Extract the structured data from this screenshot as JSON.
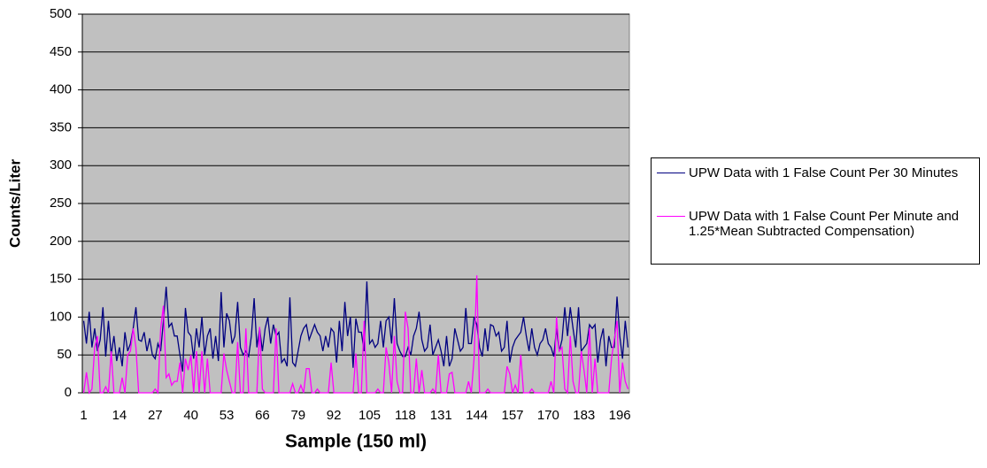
{
  "chart_data": {
    "type": "line",
    "x_label": "Sample (150 ml)",
    "y_label": "Counts/Liter",
    "categories": [
      1,
      null,
      null,
      null,
      null,
      null,
      null,
      null,
      null,
      null,
      null,
      null,
      null,
      14,
      null,
      null,
      null,
      null,
      null,
      null,
      null,
      null,
      null,
      null,
      null,
      null,
      27,
      null,
      null,
      null,
      null,
      null,
      null,
      null,
      null,
      null,
      null,
      null,
      null,
      40,
      null,
      null,
      null,
      null,
      null,
      null,
      null,
      null,
      null,
      null,
      null,
      null,
      53,
      null,
      null,
      null,
      null,
      null,
      null,
      null,
      null,
      null,
      null,
      null,
      null,
      66,
      null,
      null,
      null,
      null,
      null,
      null,
      null,
      null,
      null,
      null,
      null,
      null,
      79,
      null,
      null,
      null,
      null,
      null,
      null,
      null,
      null,
      null,
      null,
      null,
      null,
      92,
      null,
      null,
      null,
      null,
      null,
      null,
      null,
      null,
      null,
      null,
      null,
      null,
      105,
      null,
      null,
      null,
      null,
      null,
      null,
      null,
      null,
      null,
      null,
      null,
      null,
      118,
      null,
      null,
      null,
      null,
      null,
      null,
      null,
      null,
      null,
      null,
      null,
      null,
      131,
      null,
      null,
      null,
      null,
      null,
      null,
      null,
      null,
      null,
      null,
      null,
      null,
      144,
      null,
      null,
      null,
      null,
      null,
      null,
      null,
      null,
      null,
      null,
      null,
      null,
      157,
      null,
      null,
      null,
      null,
      null,
      null,
      null,
      null,
      null,
      null,
      null,
      null,
      170,
      null,
      null,
      null,
      null,
      null,
      null,
      null,
      null,
      null,
      null,
      null,
      null,
      183,
      null,
      null,
      null,
      null,
      null,
      null,
      null,
      null,
      null,
      null,
      null,
      null,
      196,
      null,
      null,
      null
    ],
    "series": [
      {
        "name": "UPW Data with 1 False Count Per 30 Minutes",
        "color": "#000080",
        "values": [
          95,
          65,
          107,
          60,
          85,
          55,
          70,
          113,
          48,
          95,
          50,
          75,
          42,
          60,
          35,
          80,
          55,
          65,
          85,
          113,
          70,
          68,
          80,
          55,
          72,
          50,
          45,
          65,
          55,
          95,
          140,
          87,
          92,
          75,
          75,
          50,
          28,
          112,
          80,
          75,
          45,
          85,
          60,
          100,
          50,
          75,
          85,
          45,
          75,
          42,
          133,
          60,
          105,
          95,
          65,
          75,
          120,
          60,
          50,
          55,
          48,
          75,
          125,
          60,
          85,
          55,
          85,
          100,
          65,
          90,
          75,
          80,
          40,
          45,
          35,
          126,
          40,
          35,
          55,
          75,
          85,
          90,
          70,
          80,
          90,
          80,
          75,
          55,
          75,
          60,
          85,
          80,
          40,
          95,
          55,
          120,
          75,
          100,
          33,
          98,
          80,
          80,
          55,
          147,
          65,
          70,
          60,
          65,
          95,
          60,
          95,
          100,
          65,
          125,
          65,
          55,
          48,
          48,
          60,
          50,
          75,
          85,
          107,
          70,
          55,
          60,
          90,
          50,
          60,
          70,
          55,
          35,
          75,
          35,
          45,
          85,
          70,
          55,
          60,
          112,
          65,
          65,
          100,
          90,
          60,
          48,
          85,
          55,
          90,
          88,
          75,
          80,
          55,
          60,
          95,
          40,
          60,
          70,
          75,
          80,
          100,
          75,
          55,
          85,
          60,
          50,
          65,
          70,
          85,
          65,
          60,
          48,
          85,
          55,
          70,
          113,
          75,
          113,
          85,
          60,
          113,
          55,
          60,
          65,
          90,
          85,
          90,
          40,
          70,
          85,
          35,
          75,
          60,
          60,
          127,
          75,
          45,
          95,
          60
        ]
      },
      {
        "name": "UPW Data with 1 False Count Per Minute and 1.25*Mean Subtracted Compensation)",
        "color": "#ff00ff",
        "values": [
          0,
          27,
          0,
          5,
          60,
          75,
          0,
          0,
          8,
          0,
          55,
          0,
          0,
          0,
          20,
          0,
          50,
          55,
          85,
          60,
          0,
          0,
          0,
          0,
          0,
          0,
          5,
          0,
          85,
          115,
          20,
          25,
          10,
          15,
          15,
          40,
          0,
          45,
          30,
          50,
          0,
          55,
          0,
          55,
          0,
          45,
          0,
          0,
          0,
          0,
          0,
          52,
          30,
          15,
          0,
          0,
          67,
          0,
          0,
          85,
          0,
          0,
          0,
          0,
          87,
          5,
          0,
          0,
          0,
          0,
          85,
          0,
          0,
          0,
          0,
          0,
          12,
          0,
          0,
          10,
          0,
          32,
          32,
          0,
          0,
          5,
          0,
          0,
          0,
          0,
          40,
          0,
          0,
          0,
          0,
          0,
          0,
          0,
          0,
          52,
          0,
          0,
          95,
          0,
          0,
          0,
          0,
          5,
          0,
          0,
          60,
          40,
          0,
          75,
          15,
          0,
          0,
          107,
          85,
          0,
          0,
          45,
          0,
          30,
          0,
          0,
          0,
          5,
          0,
          50,
          0,
          0,
          0,
          25,
          27,
          0,
          0,
          0,
          0,
          0,
          15,
          0,
          45,
          155,
          0,
          0,
          0,
          5,
          0,
          0,
          0,
          0,
          0,
          0,
          35,
          25,
          0,
          10,
          0,
          50,
          0,
          0,
          0,
          5,
          0,
          0,
          0,
          0,
          0,
          0,
          15,
          0,
          100,
          55,
          60,
          5,
          0,
          75,
          15,
          0,
          0,
          55,
          30,
          0,
          85,
          0,
          45,
          0,
          0,
          0,
          0,
          0,
          45,
          70,
          95,
          0,
          40,
          15,
          5
        ]
      }
    ],
    "ylim": [
      0,
      500
    ],
    "yticks": [
      0,
      50,
      100,
      150,
      200,
      250,
      300,
      350,
      400,
      450,
      500
    ],
    "grid": true,
    "plot_background": "#c0c0c0"
  }
}
